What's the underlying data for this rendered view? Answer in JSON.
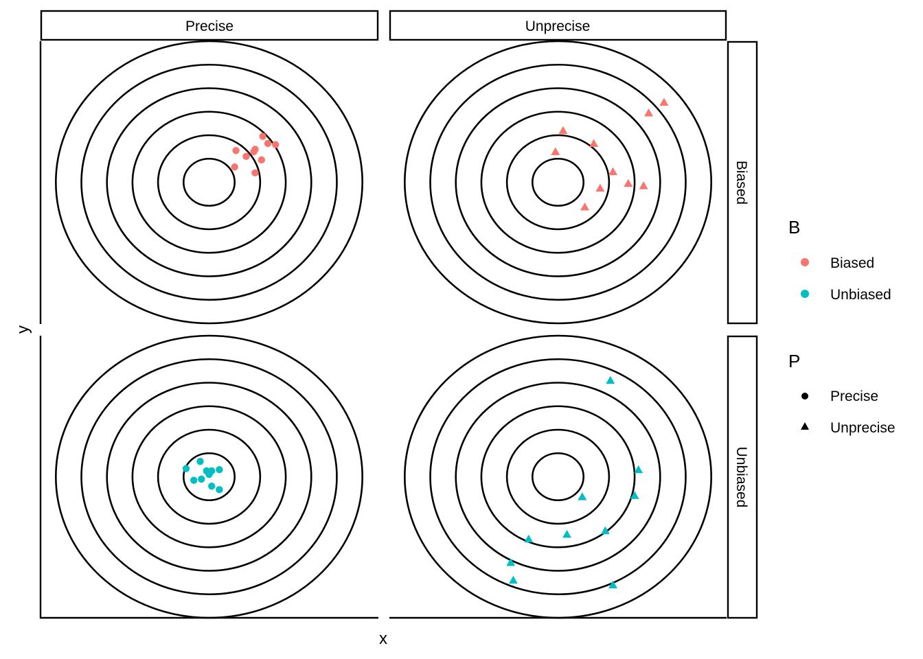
{
  "chart_data": {
    "type": "scatter",
    "xlabel": "x",
    "ylabel": "y",
    "facets": {
      "columns": [
        "Precise",
        "Unprecise"
      ],
      "rows": [
        "Biased",
        "Unbiased"
      ]
    },
    "target": {
      "center": [
        0,
        0
      ],
      "ring_radii": [
        1,
        2,
        3,
        4,
        5,
        6
      ],
      "ring_color": "#000000"
    },
    "xlim": [
      -6.6,
      6.6
    ],
    "ylim": [
      -6.0,
      6.0
    ],
    "colors": {
      "Biased": "#F8766D",
      "Unbiased": "#00BFC4"
    },
    "panels": [
      {
        "col": "Precise",
        "row": "Biased",
        "shape": "circle",
        "color_key": "Biased",
        "points": [
          {
            "x": 1.05,
            "y": 1.35
          },
          {
            "x": 1.75,
            "y": 1.3
          },
          {
            "x": 1.8,
            "y": 1.4
          },
          {
            "x": 2.1,
            "y": 1.95
          },
          {
            "x": 2.3,
            "y": 1.65
          },
          {
            "x": 2.6,
            "y": 1.6
          },
          {
            "x": 1.45,
            "y": 1.1
          },
          {
            "x": 2.05,
            "y": 0.95
          },
          {
            "x": 1.0,
            "y": 0.65
          },
          {
            "x": 1.8,
            "y": 0.4
          }
        ]
      },
      {
        "col": "Unprecise",
        "row": "Biased",
        "shape": "triangle",
        "color_key": "Biased",
        "points": [
          {
            "x": 4.15,
            "y": 3.4
          },
          {
            "x": 3.55,
            "y": 2.95
          },
          {
            "x": 1.4,
            "y": 1.65
          },
          {
            "x": 0.2,
            "y": 2.2
          },
          {
            "x": -0.1,
            "y": 1.3
          },
          {
            "x": 1.05,
            "y": -1.05
          },
          {
            "x": 2.75,
            "y": -0.05
          },
          {
            "x": 3.35,
            "y": -0.15
          },
          {
            "x": 2.15,
            "y": 0.45
          },
          {
            "x": 1.65,
            "y": -0.25
          }
        ]
      },
      {
        "col": "Precise",
        "row": "Unbiased",
        "shape": "circle",
        "color_key": "Unbiased",
        "points": [
          {
            "x": -0.9,
            "y": 0.35
          },
          {
            "x": -0.35,
            "y": 0.65
          },
          {
            "x": -0.1,
            "y": 0.25
          },
          {
            "x": 0.1,
            "y": 0.25
          },
          {
            "x": 0.4,
            "y": 0.3
          },
          {
            "x": -0.3,
            "y": -0.1
          },
          {
            "x": -0.6,
            "y": -0.15
          },
          {
            "x": 0.1,
            "y": -0.4
          },
          {
            "x": 0.4,
            "y": -0.55
          },
          {
            "x": 0.0,
            "y": 0.1
          }
        ]
      },
      {
        "col": "Unprecise",
        "row": "Unbiased",
        "shape": "triangle",
        "color_key": "Unbiased",
        "points": [
          {
            "x": 2.05,
            "y": 4.1
          },
          {
            "x": 3.15,
            "y": 0.3
          },
          {
            "x": 3.0,
            "y": -0.8
          },
          {
            "x": 0.95,
            "y": -0.85
          },
          {
            "x": 1.85,
            "y": -2.3
          },
          {
            "x": 0.35,
            "y": -2.45
          },
          {
            "x": -1.15,
            "y": -2.65
          },
          {
            "x": -1.85,
            "y": -3.65
          },
          {
            "x": -1.75,
            "y": -4.4
          },
          {
            "x": 2.15,
            "y": -4.6
          }
        ]
      }
    ],
    "legends": [
      {
        "title": "B",
        "entries": [
          {
            "label": "Biased",
            "color": "#F8766D",
            "shape": "circle"
          },
          {
            "label": "Unbiased",
            "color": "#00BFC4",
            "shape": "circle"
          }
        ]
      },
      {
        "title": "P",
        "entries": [
          {
            "label": "Precise",
            "color": "#000000",
            "shape": "circle"
          },
          {
            "label": "Unprecise",
            "color": "#000000",
            "shape": "triangle"
          }
        ]
      }
    ],
    "legend_position": "right",
    "grid": false
  }
}
